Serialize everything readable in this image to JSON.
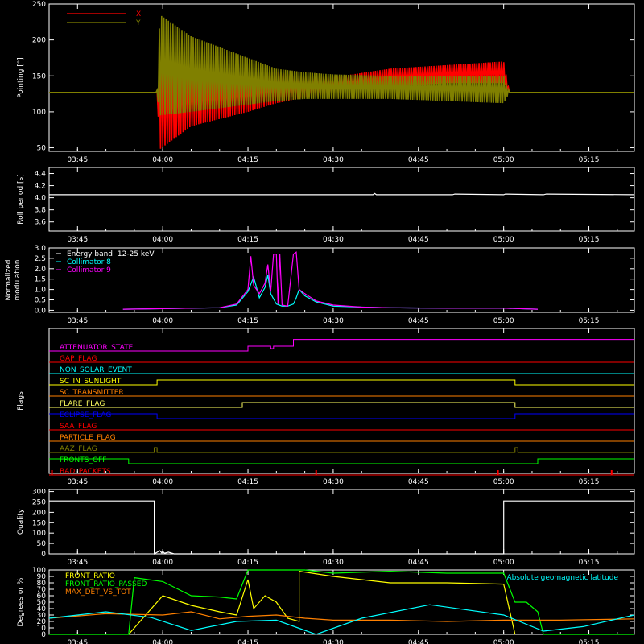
{
  "chart_data": [
    {
      "type": "line",
      "id": "pointing",
      "ylabel": "Pointing [°]",
      "ylim": [
        45,
        250
      ],
      "yticks": [
        50,
        100,
        150,
        200,
        250
      ],
      "xlim": [
        "03:40",
        "05:23"
      ],
      "xticks": [
        "03:45",
        "04:00",
        "04:15",
        "04:30",
        "04:45",
        "05:00",
        "05:15"
      ],
      "legend": {
        "placement": "top-left",
        "entries": [
          {
            "label": "X",
            "color": "#ff0000"
          },
          {
            "label": "Y",
            "color": "#808000"
          }
        ]
      },
      "series": [
        {
          "name": "X",
          "color": "#ff0000",
          "x": [
            "03:40",
            "03:59",
            "03:59.5",
            "04:05",
            "04:10",
            "04:15",
            "04:20",
            "04:25",
            "04:30",
            "04:40",
            "04:50",
            "05:00",
            "05:01",
            "05:23"
          ],
          "upper": [
            127,
            127,
            165,
            160,
            155,
            152,
            155,
            148,
            148,
            160,
            165,
            170,
            127,
            127
          ],
          "lower": [
            127,
            127,
            48,
            80,
            90,
            100,
            112,
            120,
            126,
            135,
            140,
            140,
            127,
            127
          ]
        },
        {
          "name": "Y",
          "color": "#808000",
          "x": [
            "03:40",
            "03:59",
            "03:59.5",
            "04:05",
            "04:10",
            "04:15",
            "04:20",
            "04:25",
            "04:30",
            "04:40",
            "04:50",
            "05:00",
            "05:01",
            "05:23"
          ],
          "upper": [
            127,
            127,
            235,
            205,
            190,
            175,
            160,
            155,
            152,
            150,
            150,
            150,
            127,
            127
          ],
          "lower": [
            127,
            127,
            95,
            100,
            105,
            110,
            115,
            118,
            118,
            118,
            115,
            112,
            127,
            127
          ]
        }
      ]
    },
    {
      "type": "line",
      "id": "roll",
      "ylabel": "Roll period [s]",
      "ylim": [
        3.45,
        4.5
      ],
      "yticks": [
        3.6,
        3.8,
        4.0,
        4.2,
        4.4
      ],
      "xticks": [
        "03:45",
        "04:00",
        "04:15",
        "04:30",
        "04:45",
        "05:00",
        "05:15"
      ],
      "series": [
        {
          "name": "",
          "color": "#ffffff",
          "x": [
            "03:40",
            "04:37",
            "04:37.3",
            "04:37.6",
            "04:51",
            "04:51.4",
            "05:00",
            "05:00.3",
            "05:07",
            "05:07.5",
            "05:23"
          ],
          "y": [
            4.05,
            4.05,
            4.07,
            4.05,
            4.05,
            4.06,
            4.05,
            4.06,
            4.05,
            4.06,
            4.05
          ]
        }
      ]
    },
    {
      "type": "line",
      "id": "modulation",
      "ylabel": "Normalized modulation",
      "ylim": [
        -0.1,
        3.0
      ],
      "yticks": [
        0.0,
        0.5,
        1.0,
        1.5,
        2.0,
        2.5,
        3.0
      ],
      "xticks": [
        "03:45",
        "04:00",
        "04:15",
        "04:30",
        "04:45",
        "05:00",
        "05:15"
      ],
      "legend": {
        "placement": "top-left",
        "entries": [
          {
            "label": "Energy band: 12-25 keV",
            "color": "#ffffff"
          },
          {
            "label": "Collimator 8",
            "color": "#00ffff"
          },
          {
            "label": "Collimator 9",
            "color": "#ff00ff"
          }
        ]
      },
      "series": [
        {
          "name": "Collimator 8",
          "color": "#00ffff",
          "x": [
            "03:53",
            "04:00",
            "04:05",
            "04:10",
            "04:13",
            "04:15",
            "04:16",
            "04:17",
            "04:18",
            "04:18.5",
            "04:19",
            "04:20",
            "04:20.5",
            "04:21",
            "04:22",
            "04:23",
            "04:23.5",
            "04:24",
            "04:25",
            "04:27",
            "04:30",
            "04:35",
            "04:40",
            "04:50",
            "05:00",
            "05:06"
          ],
          "y": [
            0.05,
            0.08,
            0.1,
            0.12,
            0.25,
            0.9,
            1.6,
            0.6,
            1.1,
            1.7,
            0.8,
            0.3,
            0.25,
            0.2,
            0.2,
            0.3,
            0.6,
            1.0,
            0.7,
            0.4,
            0.2,
            0.15,
            0.12,
            0.1,
            0.1,
            0.05
          ]
        },
        {
          "name": "Collimator 9",
          "color": "#ff00ff",
          "x": [
            "03:53",
            "04:00",
            "04:05",
            "04:10",
            "04:13",
            "04:15",
            "04:15.5",
            "04:16",
            "04:17",
            "04:18",
            "04:18.5",
            "04:19",
            "04:19.5",
            "04:20",
            "04:20.3",
            "04:20.6",
            "04:21",
            "04:22",
            "04:23",
            "04:23.5",
            "04:24",
            "04:25",
            "04:27",
            "04:30",
            "04:35",
            "04:40",
            "04:50",
            "05:00",
            "05:06"
          ],
          "y": [
            0.05,
            0.08,
            0.1,
            0.12,
            0.3,
            1.0,
            2.6,
            1.2,
            0.8,
            1.3,
            2.2,
            0.9,
            2.7,
            2.7,
            0.3,
            2.7,
            0.25,
            0.2,
            2.7,
            2.8,
            1.0,
            0.8,
            0.45,
            0.25,
            0.15,
            0.12,
            0.1,
            0.1,
            0.05
          ]
        }
      ]
    },
    {
      "type": "line",
      "id": "flags",
      "ylabel": "Flags",
      "xticks": [
        "03:45",
        "04:00",
        "04:15",
        "04:30",
        "04:45",
        "05:00",
        "05:15"
      ],
      "series": [
        {
          "name": "ATTENUATOR_STATE",
          "color": "#ff00ff",
          "x": [
            "03:40",
            "04:15",
            "04:15",
            "04:19",
            "04:19",
            "04:19.5",
            "04:19.5",
            "04:23",
            "04:23",
            "05:23"
          ],
          "y": [
            0,
            0,
            1,
            1,
            0.5,
            0.5,
            1,
            1,
            2.4,
            2.4
          ]
        },
        {
          "name": "GAP_FLAG",
          "color": "#ff0000",
          "x": [
            "03:40",
            "05:23"
          ],
          "y": [
            0,
            0
          ]
        },
        {
          "name": "NON_SOLAR_EVENT",
          "color": "#00ffff",
          "x": [
            "03:40",
            "05:23"
          ],
          "y": [
            0,
            0
          ]
        },
        {
          "name": "SC_IN_SUNLIGHT",
          "color": "#ffff00",
          "x": [
            "03:40",
            "03:59",
            "03:59",
            "05:02",
            "05:02",
            "05:23"
          ],
          "y": [
            0,
            0,
            1,
            1,
            0,
            0
          ]
        },
        {
          "name": "SC_TRANSMITTER",
          "color": "#ff8000",
          "x": [
            "03:40",
            "05:23"
          ],
          "y": [
            0,
            0
          ]
        },
        {
          "name": "FLARE_FLAG",
          "color": "#ffff60",
          "x": [
            "03:40",
            "04:14",
            "04:14",
            "05:02",
            "05:02",
            "05:23"
          ],
          "y": [
            0,
            0,
            1,
            1,
            0,
            0
          ]
        },
        {
          "name": "ECLIPSE_FLAG",
          "color": "#0000ff",
          "x": [
            "03:40",
            "03:59",
            "03:59",
            "05:02",
            "05:02",
            "05:23"
          ],
          "y": [
            1,
            1,
            0,
            0,
            1,
            1
          ]
        },
        {
          "name": "SAA_FLAG",
          "color": "#ff0000",
          "x": [
            "03:40",
            "05:23"
          ],
          "y": [
            0,
            0
          ]
        },
        {
          "name": "PARTICLE_FLAG",
          "color": "#ff8000",
          "x": [
            "03:40",
            "05:23"
          ],
          "y": [
            0,
            0
          ]
        },
        {
          "name": "AAZ_FLAG",
          "color": "#808000",
          "x": [
            "03:40",
            "03:58.5",
            "03:58.5",
            "03:59",
            "03:59",
            "05:02",
            "05:02",
            "05:02.5",
            "05:02.5",
            "05:23"
          ],
          "y": [
            0,
            0,
            1,
            1,
            0,
            0,
            1,
            1,
            0,
            0
          ]
        },
        {
          "name": "FRONTS_OFF",
          "color": "#00ff00",
          "x": [
            "03:40",
            "03:54",
            "03:54",
            "05:06",
            "05:06",
            "05:23"
          ],
          "y": [
            1,
            1,
            0,
            0,
            1,
            1
          ]
        },
        {
          "name": "BAD_PACKETS",
          "color": "#ff0000",
          "x": [
            "03:40",
            "05:23"
          ],
          "y": [
            0,
            0
          ],
          "spikes": [
            "03:40.5",
            "04:27",
            "04:59",
            "05:19"
          ]
        }
      ]
    },
    {
      "type": "line",
      "id": "quality",
      "ylabel": "Quality",
      "ylim": [
        0,
        310
      ],
      "yticks": [
        0,
        50,
        100,
        150,
        200,
        250,
        300
      ],
      "xticks": [
        "03:45",
        "04:00",
        "04:15",
        "04:30",
        "04:45",
        "05:00",
        "05:15"
      ],
      "series": [
        {
          "name": "",
          "color": "#ffffff",
          "x": [
            "03:40",
            "03:58.5",
            "03:58.5",
            "03:59.5",
            "03:59.8",
            "04:00",
            "04:00.3",
            "04:01",
            "04:02",
            "05:00",
            "05:00",
            "05:23"
          ],
          "y": [
            255,
            255,
            0,
            15,
            5,
            12,
            3,
            8,
            0,
            0,
            255,
            255
          ]
        }
      ]
    },
    {
      "type": "line",
      "id": "ratios",
      "ylabel": "Degrees or %",
      "ylim": [
        0,
        100
      ],
      "yticks": [
        0,
        10,
        20,
        30,
        40,
        50,
        60,
        70,
        80,
        90,
        100
      ],
      "legend": {
        "placement": "top-left",
        "entries": [
          {
            "label": "FRONT_RATIO",
            "color": "#ffff00"
          },
          {
            "label": "FRONT_RATIO_PASSED",
            "color": "#00ff00"
          },
          {
            "label": "MAX_DET_VS_TOT",
            "color": "#ff8000"
          },
          {
            "label": "Absolute geomagnetic latitude",
            "color": "#00ffff"
          }
        ]
      },
      "series": [
        {
          "name": "FRONT_RATIO",
          "color": "#ffff00",
          "x": [
            "03:54",
            "04:00",
            "04:05",
            "04:10",
            "04:13",
            "04:15",
            "04:16",
            "04:18",
            "04:20",
            "04:22",
            "04:24",
            "04:24",
            "04:30",
            "04:40",
            "04:50",
            "05:00",
            "05:02"
          ],
          "y": [
            0,
            60,
            45,
            35,
            30,
            85,
            40,
            60,
            50,
            25,
            20,
            98,
            90,
            80,
            80,
            78,
            0
          ]
        },
        {
          "name": "FRONT_RATIO_PASSED",
          "color": "#00ff00",
          "x": [
            "03:40",
            "03:54",
            "03:55",
            "04:00",
            "04:05",
            "04:10",
            "04:13",
            "04:15",
            "04:20",
            "04:25",
            "04:30",
            "04:40",
            "04:50",
            "05:00",
            "05:02",
            "05:04",
            "05:06",
            "05:07",
            "05:23"
          ],
          "y": [
            0,
            0,
            88,
            82,
            60,
            58,
            55,
            100,
            100,
            100,
            95,
            98,
            95,
            95,
            50,
            50,
            35,
            0,
            0
          ]
        },
        {
          "name": "MAX_DET_VS_TOT",
          "color": "#ff8000",
          "x": [
            "03:40",
            "03:50",
            "04:00",
            "04:05",
            "04:10",
            "04:15",
            "04:20",
            "04:25",
            "04:30",
            "04:40",
            "04:50",
            "05:00",
            "05:10",
            "05:23"
          ],
          "y": [
            25,
            32,
            30,
            35,
            24,
            28,
            30,
            25,
            22,
            22,
            20,
            22,
            22,
            24
          ]
        },
        {
          "name": "Absolute geomagnetic latitude",
          "color": "#00ffff",
          "x": [
            "03:40",
            "03:50",
            "03:58",
            "04:05",
            "04:13",
            "04:20",
            "04:27",
            "04:35",
            "04:47",
            "05:00",
            "05:07",
            "05:14",
            "05:23"
          ],
          "y": [
            25,
            35,
            26,
            6,
            20,
            22,
            0,
            25,
            46,
            30,
            5,
            12,
            30
          ]
        }
      ]
    }
  ]
}
